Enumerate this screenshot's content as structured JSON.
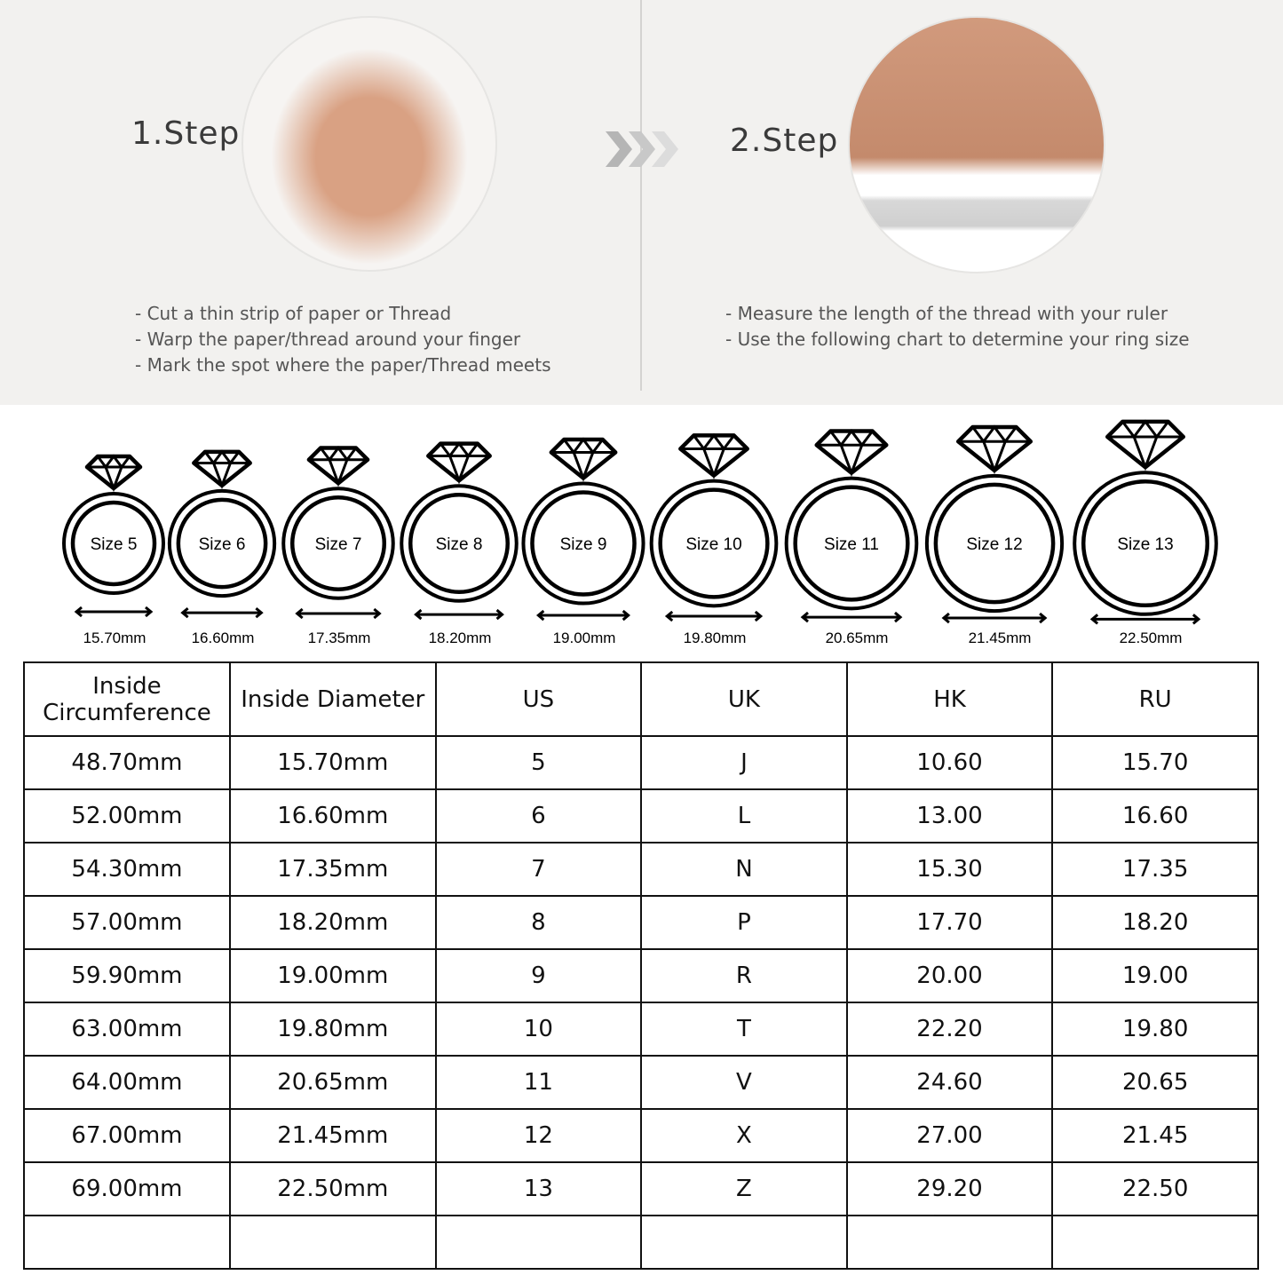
{
  "steps": [
    {
      "title": "1.Step",
      "bullets": [
        "- Cut a thin strip of paper or Thread",
        "- Warp the paper/thread around your finger",
        "- Mark the spot where the paper/Thread meets"
      ]
    },
    {
      "title": "2.Step",
      "bullets": [
        "- Measure the length of the thread with your ruler",
        "- Use the following chart to determine your ring size"
      ]
    }
  ],
  "arrow_icon": "triple-chevron-right-icon",
  "rings": [
    {
      "label": "Size 5",
      "diameter": "15.70mm",
      "mm": 15.7
    },
    {
      "label": "Size 6",
      "diameter": "16.60mm",
      "mm": 16.6
    },
    {
      "label": "Size 7",
      "diameter": "17.35mm",
      "mm": 17.35
    },
    {
      "label": "Size 8",
      "diameter": "18.20mm",
      "mm": 18.2
    },
    {
      "label": "Size 9",
      "diameter": "19.00mm",
      "mm": 19.0
    },
    {
      "label": "Size 10",
      "diameter": "19.80mm",
      "mm": 19.8
    },
    {
      "label": "Size 11",
      "diameter": "20.65mm",
      "mm": 20.65
    },
    {
      "label": "Size 12",
      "diameter": "21.45mm",
      "mm": 21.45
    },
    {
      "label": "Size 13",
      "diameter": "22.50mm",
      "mm": 22.5
    }
  ],
  "table": {
    "headers": [
      "Inside Circumference",
      "Inside Diameter",
      "US",
      "UK",
      "HK",
      "RU"
    ],
    "rows": [
      [
        "48.70mm",
        "15.70mm",
        "5",
        "J",
        "10.60",
        "15.70"
      ],
      [
        "52.00mm",
        "16.60mm",
        "6",
        "L",
        "13.00",
        "16.60"
      ],
      [
        "54.30mm",
        "17.35mm",
        "7",
        "N",
        "15.30",
        "17.35"
      ],
      [
        "57.00mm",
        "18.20mm",
        "8",
        "P",
        "17.70",
        "18.20"
      ],
      [
        "59.90mm",
        "19.00mm",
        "9",
        "R",
        "20.00",
        "19.00"
      ],
      [
        "63.00mm",
        "19.80mm",
        "10",
        "T",
        "22.20",
        "19.80"
      ],
      [
        "64.00mm",
        "20.65mm",
        "11",
        "V",
        "24.60",
        "20.65"
      ],
      [
        "67.00mm",
        "21.45mm",
        "12",
        "X",
        "27.00",
        "21.45"
      ],
      [
        "69.00mm",
        "22.50mm",
        "13",
        "Z",
        "29.20",
        "22.50"
      ],
      [
        "",
        "",
        "",
        "",
        "",
        ""
      ]
    ]
  }
}
